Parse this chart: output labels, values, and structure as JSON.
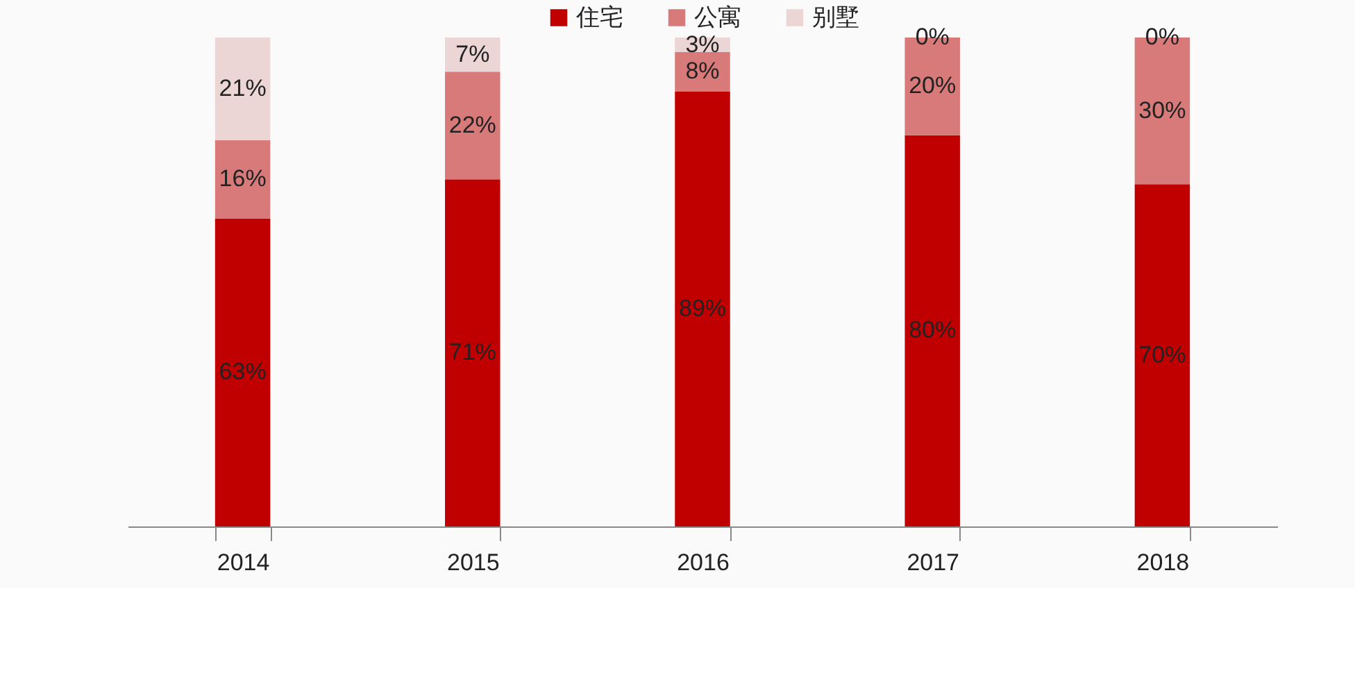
{
  "chart_data": {
    "type": "bar",
    "stacked": true,
    "legend": "top",
    "categories": [
      "2014",
      "2015",
      "2016",
      "2017",
      "2018"
    ],
    "series": [
      {
        "name": "住宅",
        "color": "#c00000",
        "values": [
          63,
          71,
          89,
          80,
          70
        ],
        "value_labels": [
          "63%",
          "71%",
          "89%",
          "80%",
          "70%"
        ]
      },
      {
        "name": "公寓",
        "color": "#d97a7a",
        "values": [
          16,
          22,
          8,
          20,
          30
        ],
        "value_labels": [
          "16%",
          "22%",
          "8%",
          "20%",
          "30%"
        ]
      },
      {
        "name": "别墅",
        "color": "#ecd5d5",
        "values": [
          21,
          7,
          3,
          0,
          0
        ],
        "value_labels": [
          "21%",
          "7%",
          "3%",
          "0%",
          "0%"
        ]
      }
    ]
  }
}
